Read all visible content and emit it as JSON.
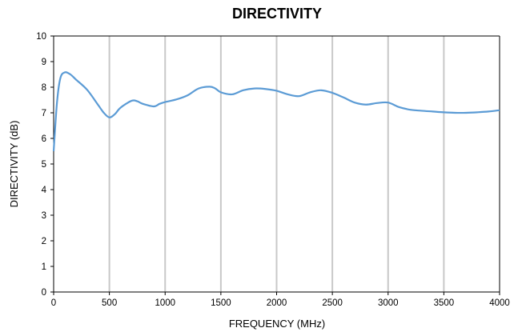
{
  "chart_data": {
    "type": "line",
    "title": "DIRECTIVITY",
    "xlabel": "FREQUENCY (MHz)",
    "ylabel": "DIRECTIVITY (dB)",
    "xlim": [
      0,
      4000
    ],
    "ylim": [
      0,
      10
    ],
    "xticks": [
      "0",
      "500",
      "1000",
      "1500",
      "2000",
      "2500",
      "3000",
      "3500",
      "4000"
    ],
    "yticks": [
      "0",
      "1",
      "2",
      "3",
      "4",
      "5",
      "6",
      "7",
      "8",
      "9",
      "10"
    ],
    "grid": "vertical",
    "legend": "none",
    "series": [
      {
        "color": "#5b9bd5",
        "x": [
          0,
          30,
          60,
          100,
          150,
          200,
          300,
          400,
          450,
          500,
          550,
          600,
          700,
          750,
          800,
          900,
          950,
          1000,
          1100,
          1200,
          1300,
          1400,
          1450,
          1500,
          1600,
          1700,
          1800,
          1900,
          2000,
          2100,
          2200,
          2300,
          2400,
          2500,
          2600,
          2700,
          2800,
          2900,
          3000,
          3100,
          3200,
          3300,
          3400,
          3500,
          3600,
          3700,
          3800,
          3900,
          4000
        ],
        "y": [
          5.5,
          7.4,
          8.35,
          8.58,
          8.5,
          8.3,
          7.9,
          7.3,
          7.0,
          6.82,
          6.95,
          7.2,
          7.47,
          7.45,
          7.35,
          7.25,
          7.35,
          7.42,
          7.52,
          7.68,
          7.95,
          8.02,
          7.95,
          7.8,
          7.72,
          7.88,
          7.95,
          7.93,
          7.86,
          7.72,
          7.65,
          7.8,
          7.88,
          7.78,
          7.6,
          7.4,
          7.32,
          7.38,
          7.4,
          7.22,
          7.12,
          7.08,
          7.05,
          7.02,
          7.0,
          7.0,
          7.02,
          7.05,
          7.1
        ]
      }
    ]
  }
}
